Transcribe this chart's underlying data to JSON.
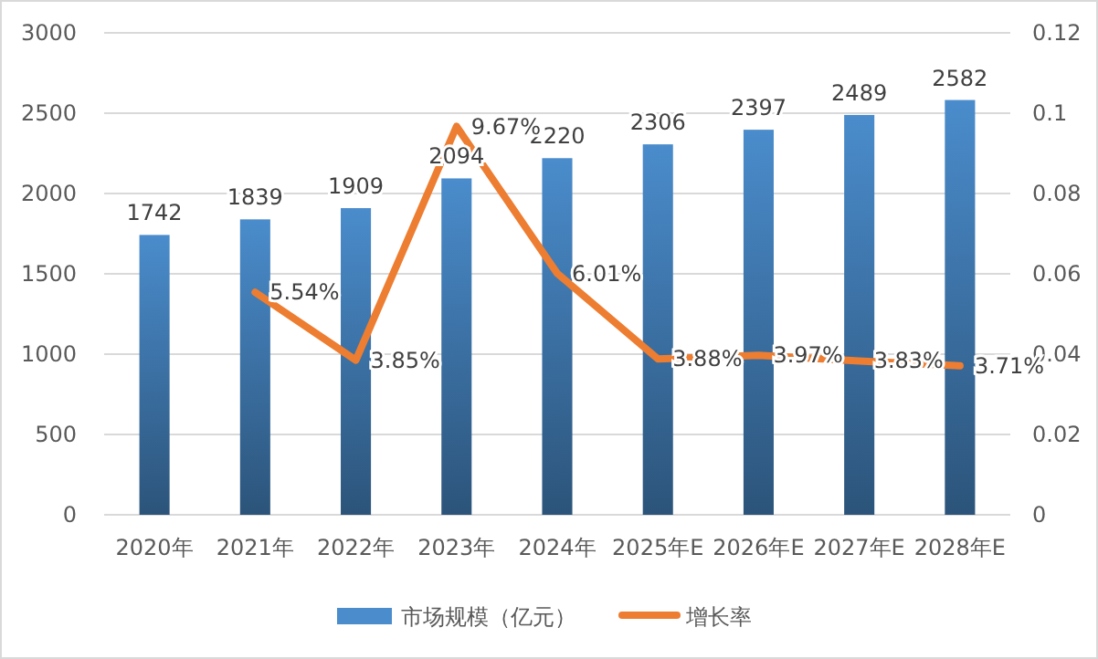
{
  "chart_data": {
    "type": "bar",
    "categories": [
      "2020年",
      "2021年",
      "2022年",
      "2023年",
      "2024年",
      "2025年E",
      "2026年E",
      "2027年E",
      "2028年E"
    ],
    "series": [
      {
        "name": "市场规模（亿元）",
        "color": "#4a8ccc",
        "values": [
          1742,
          1839,
          1909,
          2094,
          2220,
          2306,
          2397,
          2489,
          2582
        ]
      },
      {
        "name": "增长率",
        "type": "line",
        "axis": "y2",
        "color": "#ed7d31",
        "values": [
          null,
          0.0554,
          0.0385,
          0.0967,
          0.0601,
          0.0388,
          0.0397,
          0.0383,
          0.0371
        ],
        "value_labels": [
          null,
          "5.54%",
          "3.85%",
          "9.67%",
          "6.01%",
          "3.88%",
          "3.97%",
          "3.83%",
          "3.71%"
        ]
      }
    ],
    "ylim": [
      0,
      3000
    ],
    "yticks": [
      0,
      500,
      1000,
      1500,
      2000,
      2500,
      3000
    ],
    "y2lim": [
      0,
      0.12
    ],
    "y2ticks": [
      0,
      0.02,
      0.04,
      0.06,
      0.08,
      0.1,
      0.12
    ],
    "data_labels": true,
    "grid": "y",
    "legend": "bottom",
    "marker": "none",
    "line_style": "solid"
  }
}
